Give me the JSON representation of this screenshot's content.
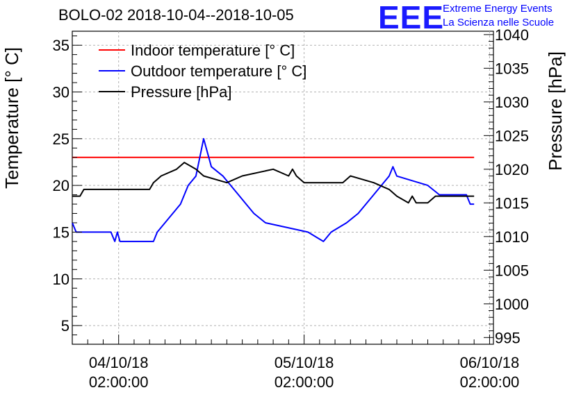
{
  "title": "BOLO-02 2018-10-04--2018-10-05",
  "logo": {
    "mark": "EEE",
    "line1": "Extreme Energy Events",
    "line2": "La Scienza nelle Scuole"
  },
  "chart_data": {
    "type": "line",
    "title": "BOLO-02 2018-10-04--2018-10-05",
    "ylabel": "Temperature [° C]",
    "y2label": "Pressure [hPa]",
    "ylim": [
      3,
      36.5
    ],
    "y2lim": [
      994,
      1040.5
    ],
    "xlim": [
      "2018-10-03 20:00:00",
      "2018-10-06 02:30:00"
    ],
    "grid": true,
    "legend_position": "top-left",
    "xticks": [
      {
        "x": "2018-10-04 02:00:00",
        "line1": "04/10/18",
        "line2": "02:00:00"
      },
      {
        "x": "2018-10-05 02:00:00",
        "line1": "05/10/18",
        "line2": "02:00:00"
      },
      {
        "x": "2018-10-06 02:00:00",
        "line1": "06/10/18",
        "line2": "02:00:00"
      }
    ],
    "yticks": [
      5,
      10,
      15,
      20,
      25,
      30,
      35
    ],
    "y2ticks": [
      995,
      1000,
      1005,
      1010,
      1015,
      1020,
      1025,
      1030,
      1035,
      1040
    ],
    "series": [
      {
        "name": "Indoor temperature [° C]",
        "axis": "left",
        "color": "#ff0000",
        "points": [
          [
            "2018-10-03 20:00:00",
            23
          ],
          [
            "2018-10-06 00:00:00",
            23
          ]
        ]
      },
      {
        "name": "Outdoor temperature [° C]",
        "axis": "left",
        "color": "#0000ff",
        "points": [
          [
            "2018-10-03 20:00:00",
            16
          ],
          [
            "2018-10-03 20:30:00",
            15
          ],
          [
            "2018-10-04 01:00:00",
            15
          ],
          [
            "2018-10-04 01:30:00",
            14
          ],
          [
            "2018-10-04 01:50:00",
            15
          ],
          [
            "2018-10-04 02:10:00",
            14
          ],
          [
            "2018-10-04 06:30:00",
            14
          ],
          [
            "2018-10-04 07:00:00",
            15
          ],
          [
            "2018-10-04 08:00:00",
            16
          ],
          [
            "2018-10-04 09:00:00",
            17
          ],
          [
            "2018-10-04 10:00:00",
            18
          ],
          [
            "2018-10-04 11:00:00",
            20
          ],
          [
            "2018-10-04 12:00:00",
            21
          ],
          [
            "2018-10-04 12:30:00",
            23
          ],
          [
            "2018-10-04 13:00:00",
            25
          ],
          [
            "2018-10-04 13:40:00",
            23
          ],
          [
            "2018-10-04 14:00:00",
            22
          ],
          [
            "2018-10-04 15:30:00",
            21
          ],
          [
            "2018-10-04 16:30:00",
            20
          ],
          [
            "2018-10-04 17:30:00",
            19
          ],
          [
            "2018-10-04 18:30:00",
            18
          ],
          [
            "2018-10-04 19:30:00",
            17
          ],
          [
            "2018-10-04 21:00:00",
            16
          ],
          [
            "2018-10-05 02:30:00",
            15
          ],
          [
            "2018-10-05 04:30:00",
            14
          ],
          [
            "2018-10-05 05:30:00",
            15
          ],
          [
            "2018-10-05 07:30:00",
            16
          ],
          [
            "2018-10-05 09:00:00",
            17
          ],
          [
            "2018-10-05 10:00:00",
            18
          ],
          [
            "2018-10-05 11:00:00",
            19
          ],
          [
            "2018-10-05 12:00:00",
            20
          ],
          [
            "2018-10-05 13:00:00",
            21
          ],
          [
            "2018-10-05 13:30:00",
            22
          ],
          [
            "2018-10-05 14:00:00",
            21
          ],
          [
            "2018-10-05 18:00:00",
            20
          ],
          [
            "2018-10-05 19:30:00",
            19
          ],
          [
            "2018-10-05 23:00:00",
            19
          ],
          [
            "2018-10-05 23:30:00",
            18
          ],
          [
            "2018-10-06 00:00:00",
            18
          ]
        ]
      },
      {
        "name": "Pressure [hPa]",
        "axis": "right",
        "color": "#000000",
        "points": [
          [
            "2018-10-03 20:00:00",
            1016
          ],
          [
            "2018-10-03 21:00:00",
            1016
          ],
          [
            "2018-10-03 21:30:00",
            1017
          ],
          [
            "2018-10-04 06:00:00",
            1017
          ],
          [
            "2018-10-04 06:30:00",
            1018
          ],
          [
            "2018-10-04 07:30:00",
            1019
          ],
          [
            "2018-10-04 09:30:00",
            1020
          ],
          [
            "2018-10-04 10:30:00",
            1021
          ],
          [
            "2018-10-04 12:00:00",
            1020
          ],
          [
            "2018-10-04 13:00:00",
            1019
          ],
          [
            "2018-10-04 16:00:00",
            1018
          ],
          [
            "2018-10-04 18:00:00",
            1019
          ],
          [
            "2018-10-04 22:00:00",
            1020
          ],
          [
            "2018-10-05 00:00:00",
            1019
          ],
          [
            "2018-10-05 00:30:00",
            1020
          ],
          [
            "2018-10-05 01:00:00",
            1019
          ],
          [
            "2018-10-05 02:00:00",
            1018
          ],
          [
            "2018-10-05 07:00:00",
            1018
          ],
          [
            "2018-10-05 08:00:00",
            1019
          ],
          [
            "2018-10-05 11:00:00",
            1018
          ],
          [
            "2018-10-05 13:00:00",
            1017
          ],
          [
            "2018-10-05 14:00:00",
            1016
          ],
          [
            "2018-10-05 15:30:00",
            1015
          ],
          [
            "2018-10-05 16:00:00",
            1016
          ],
          [
            "2018-10-05 16:30:00",
            1015
          ],
          [
            "2018-10-05 18:00:00",
            1015
          ],
          [
            "2018-10-05 19:00:00",
            1016
          ],
          [
            "2018-10-06 00:00:00",
            1016
          ]
        ]
      }
    ]
  }
}
